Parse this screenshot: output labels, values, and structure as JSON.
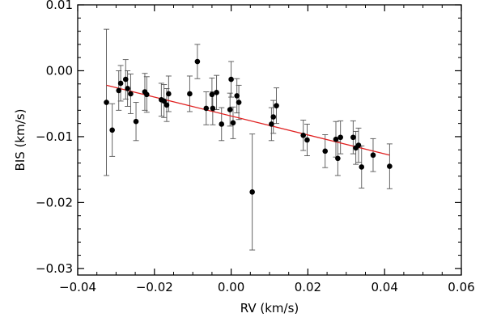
{
  "chart_data": {
    "type": "scatter",
    "title": "",
    "xlabel": "RV (km/s)",
    "ylabel": "BIS (km/s)",
    "xlim": [
      -0.04,
      0.06
    ],
    "ylim": [
      -0.031,
      0.01
    ],
    "x_ticks": [
      -0.04,
      -0.02,
      0.0,
      0.02,
      0.04,
      0.06
    ],
    "x_tick_labels": [
      "−0.04",
      "−0.02",
      "0.00",
      "0.02",
      "0.04",
      "0.06"
    ],
    "y_ticks": [
      0.01,
      0.0,
      -0.01,
      -0.02,
      -0.03
    ],
    "y_tick_labels": [
      "0.01",
      "0.00",
      "−0.01",
      "−0.02",
      "−0.03"
    ],
    "grid": false,
    "point_color": "#000000",
    "fit_color": "#e02020",
    "series": [
      {
        "points": [
          {
            "x": -0.0325,
            "y": -0.0048,
            "err": 0.0111
          },
          {
            "x": -0.031,
            "y": -0.009,
            "err": 0.004
          },
          {
            "x": -0.0293,
            "y": -0.003,
            "err": 0.003
          },
          {
            "x": -0.0288,
            "y": -0.0019,
            "err": 0.0027
          },
          {
            "x": -0.0275,
            "y": -0.0013,
            "err": 0.003
          },
          {
            "x": -0.027,
            "y": -0.0027,
            "err": 0.0027
          },
          {
            "x": -0.0262,
            "y": -0.0035,
            "err": 0.003
          },
          {
            "x": -0.0248,
            "y": -0.0077,
            "err": 0.0029
          },
          {
            "x": -0.0225,
            "y": -0.0032,
            "err": 0.0028
          },
          {
            "x": -0.022,
            "y": -0.0036,
            "err": 0.0027
          },
          {
            "x": -0.0182,
            "y": -0.0044,
            "err": 0.0025
          },
          {
            "x": -0.0175,
            "y": -0.0046,
            "err": 0.0025
          },
          {
            "x": -0.0168,
            "y": -0.0052,
            "err": 0.0025
          },
          {
            "x": -0.0163,
            "y": -0.0035,
            "err": 0.0027
          },
          {
            "x": -0.0108,
            "y": -0.0035,
            "err": 0.0027
          },
          {
            "x": -0.0088,
            "y": 0.0014,
            "err": 0.0026
          },
          {
            "x": -0.0065,
            "y": -0.0057,
            "err": 0.0025
          },
          {
            "x": -0.005,
            "y": -0.0036,
            "err": 0.0025
          },
          {
            "x": -0.0048,
            "y": -0.0057,
            "err": 0.0025
          },
          {
            "x": -0.0038,
            "y": -0.0033,
            "err": 0.0026
          },
          {
            "x": -0.0025,
            "y": -0.0081,
            "err": 0.0025
          },
          {
            "x": -0.0003,
            "y": -0.0059,
            "err": 0.0025
          },
          {
            "x": 0.0,
            "y": -0.0013,
            "err": 0.0027
          },
          {
            "x": 0.0005,
            "y": -0.0079,
            "err": 0.0024
          },
          {
            "x": 0.0015,
            "y": -0.0038,
            "err": 0.0026
          },
          {
            "x": 0.002,
            "y": -0.0048,
            "err": 0.0026
          },
          {
            "x": 0.0055,
            "y": -0.0184,
            "err": 0.0088
          },
          {
            "x": 0.0105,
            "y": -0.0081,
            "err": 0.0025
          },
          {
            "x": 0.011,
            "y": -0.007,
            "err": 0.0025
          },
          {
            "x": 0.0118,
            "y": -0.0053,
            "err": 0.0027
          },
          {
            "x": 0.0188,
            "y": -0.0098,
            "err": 0.0023
          },
          {
            "x": 0.0198,
            "y": -0.0105,
            "err": 0.0024
          },
          {
            "x": 0.0245,
            "y": -0.0122,
            "err": 0.0025
          },
          {
            "x": 0.0273,
            "y": -0.0104,
            "err": 0.0027
          },
          {
            "x": 0.0278,
            "y": -0.0133,
            "err": 0.0026
          },
          {
            "x": 0.0285,
            "y": -0.0101,
            "err": 0.0025
          },
          {
            "x": 0.0318,
            "y": -0.0101,
            "err": 0.0025
          },
          {
            "x": 0.0325,
            "y": -0.0117,
            "err": 0.0025
          },
          {
            "x": 0.0332,
            "y": -0.0113,
            "err": 0.0026
          },
          {
            "x": 0.034,
            "y": -0.0146,
            "err": 0.0032
          },
          {
            "x": 0.037,
            "y": -0.0128,
            "err": 0.0025
          },
          {
            "x": 0.0413,
            "y": -0.0145,
            "err": 0.0034
          }
        ]
      }
    ],
    "fit_line": {
      "x": [
        -0.0325,
        0.0413
      ],
      "y": [
        -0.0022,
        -0.0128
      ]
    }
  }
}
